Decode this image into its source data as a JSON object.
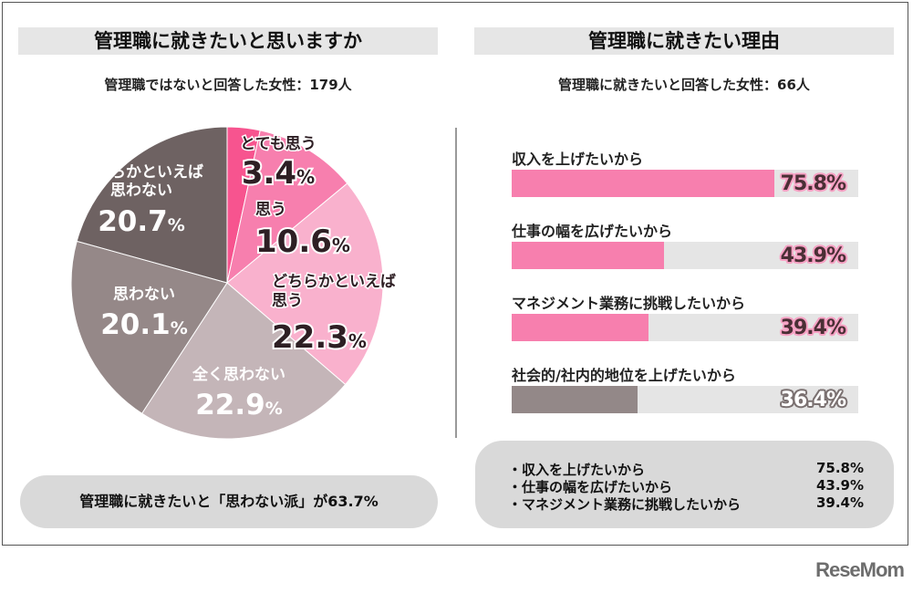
{
  "left_panel": {
    "title": "管理職に就きたいと思いますか",
    "subtitle": "管理職ではないと回答した女性：179人",
    "summary": "管理職に就きたいと「思わない派」が63.7%"
  },
  "right_panel": {
    "title": "管理職に就きたい理由",
    "subtitle": "管理職に就きたいと回答した女性：66人",
    "top3": [
      {
        "label": "・収入を上げたいから",
        "value": "75.8%"
      },
      {
        "label": "・仕事の幅を広げたいから",
        "value": "43.9%"
      },
      {
        "label": "・マネジメント業務に挑戦したいから",
        "value": "39.4%"
      }
    ]
  },
  "chart_data": [
    {
      "type": "pie",
      "title": "管理職に就きたいと思いますか",
      "unit": "%",
      "slices": [
        {
          "label_lines": [
            "とても思う"
          ],
          "value": 3.4,
          "value_text": "3.4",
          "color": "#f7548f"
        },
        {
          "label_lines": [
            "思う"
          ],
          "value": 10.6,
          "value_text": "10.6",
          "color": "#f77fae"
        },
        {
          "label_lines": [
            "どちらかといえば",
            "思う"
          ],
          "value": 22.3,
          "value_text": "22.3",
          "color": "#f9b1cd"
        },
        {
          "label_lines": [
            "全く思わない"
          ],
          "value": 22.9,
          "value_text": "22.9",
          "color": "#c4b5b8"
        },
        {
          "label_lines": [
            "思わない"
          ],
          "value": 20.1,
          "value_text": "20.1",
          "color": "#958888"
        },
        {
          "label_lines": [
            "どちらかといえば",
            "思わない"
          ],
          "value": 20.7,
          "value_text": "20.7",
          "color": "#6e6262"
        }
      ]
    },
    {
      "type": "bar",
      "orientation": "horizontal",
      "title": "管理職に就きたい理由",
      "xlim": [
        0,
        100
      ],
      "bars": [
        {
          "label": "収入を上げたいから",
          "value": 75.8,
          "value_text": "75.8%",
          "color": "#f77fae",
          "style": "pink"
        },
        {
          "label": "仕事の幅を広げたいから",
          "value": 43.9,
          "value_text": "43.9%",
          "color": "#f77fae",
          "style": "pink"
        },
        {
          "label": "マネジメント業務に挑戦したいから",
          "value": 39.4,
          "value_text": "39.4%",
          "color": "#f77fae",
          "style": "pink"
        },
        {
          "label": "社会的/社内的地位を上げたいから",
          "value": 36.4,
          "value_text": "36.4%",
          "color": "#938888",
          "style": "gray"
        }
      ]
    }
  ],
  "logo": "ReseMom"
}
